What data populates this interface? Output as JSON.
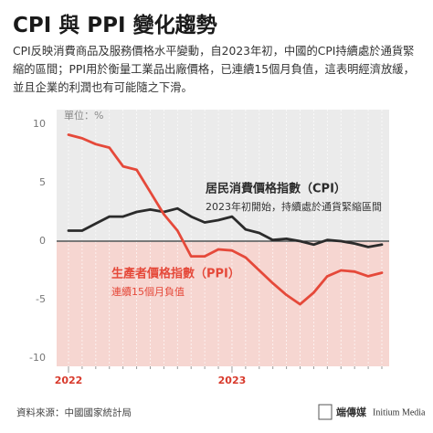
{
  "chart_data": {
    "type": "line",
    "title": "CPI 與 PPI 變化趨勢",
    "subtitle": "CPI反映消費商品及服務價格水平變動，自2023年初，中國的CPI持續處於通貨緊縮的區間；PPI用於衡量工業品出廠價格，已連續15個月負值，這表明經濟放緩，並且企業的利潤也有可能隨之下滑。",
    "unit_label": "單位：%",
    "categories": [
      "2022",
      null,
      null,
      null,
      null,
      null,
      null,
      null,
      null,
      null,
      null,
      null,
      "2023",
      null,
      null,
      null,
      null,
      null,
      null,
      null,
      null,
      null,
      null,
      null
    ],
    "series": [
      {
        "name": "居民消費價格指數（CPI）",
        "color": "#2b2b2b",
        "values": [
          0.9,
          0.9,
          1.5,
          2.1,
          2.1,
          2.5,
          2.7,
          2.5,
          2.8,
          2.1,
          1.6,
          1.8,
          2.1,
          1.0,
          0.7,
          0.1,
          0.2,
          0.0,
          -0.3,
          0.1,
          0.0,
          -0.2,
          -0.5,
          -0.3
        ]
      },
      {
        "name": "生產者價格指數（PPI）",
        "color": "#e5493a",
        "values": [
          9.1,
          8.8,
          8.3,
          8.0,
          6.4,
          6.1,
          4.2,
          2.3,
          0.9,
          -1.3,
          -1.3,
          -0.7,
          -0.8,
          -1.4,
          -2.5,
          -3.6,
          -4.6,
          -5.4,
          -4.4,
          -3.0,
          -2.5,
          -2.6,
          -3.0,
          -2.7
        ]
      }
    ],
    "series_notes": [
      "2023年初開始，持續處於通貨緊縮區間",
      "連續15個月負值"
    ],
    "ylim": [
      -10,
      10
    ],
    "yticks": [
      10,
      5,
      0,
      -5,
      -10
    ],
    "source": "資料來源：中國國家統計局",
    "logo": [
      "端傳媒",
      "Initium Media"
    ]
  }
}
